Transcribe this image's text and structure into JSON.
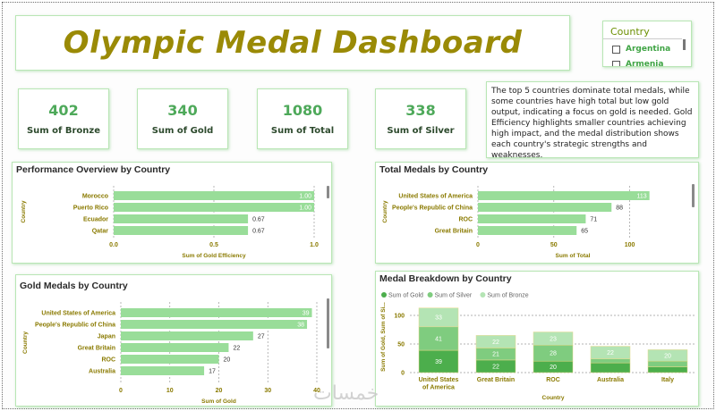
{
  "title": "Olympic Medal Dashboard",
  "slicer": {
    "label": "Country",
    "options": [
      "Argentina",
      "Armenia"
    ]
  },
  "kpis": [
    {
      "value": "402",
      "label": "Sum of Bronze"
    },
    {
      "value": "340",
      "label": "Sum of Gold"
    },
    {
      "value": "1080",
      "label": "Sum of Total"
    },
    {
      "value": "338",
      "label": "Sum of Silver"
    }
  ],
  "insight": "The top 5 countries dominate total medals, while some countries have high total but low gold output, indicating a focus on gold is needed. Gold Efficiency highlights smaller countries achieving high impact, and the medal distribution shows each country's strategic strengths and weaknesses.",
  "watermark": "خمسات",
  "colors": {
    "bar": "#99dd99",
    "gold_seg": "#4cae4c",
    "silver_seg": "#7fcc7f",
    "bronze_seg": "#b4e4b4",
    "title": "#9a8a06"
  },
  "chart_data": [
    {
      "id": "performance",
      "type": "bar",
      "orientation": "horizontal",
      "title": "Performance Overview by Country",
      "categories": [
        "Morocco",
        "Puerto Rico",
        "Ecuador",
        "Qatar"
      ],
      "values": [
        1.0,
        1.0,
        0.67,
        0.67
      ],
      "labels": [
        "1.00",
        "1.00",
        "0.67",
        "0.67"
      ],
      "ticks": [
        0.0,
        0.5,
        1.0
      ],
      "tick_labels": [
        "0.0",
        "0.5",
        "1.0"
      ],
      "xlim": [
        0,
        1
      ],
      "xlabel": "Sum of Gold Efficiency",
      "ylabel": "Country"
    },
    {
      "id": "total",
      "type": "bar",
      "orientation": "horizontal",
      "title": "Total Medals by Country",
      "categories": [
        "United States of America",
        "People's Republic of China",
        "ROC",
        "Great Britain"
      ],
      "values": [
        113,
        88,
        71,
        65
      ],
      "labels": [
        "113",
        "88",
        "71",
        "65"
      ],
      "ticks": [
        0,
        50,
        100
      ],
      "tick_labels": [
        "0",
        "50",
        "100"
      ],
      "xlim": [
        0,
        125
      ],
      "xlabel": "Sum of Total",
      "ylabel": "Country"
    },
    {
      "id": "gold",
      "type": "bar",
      "orientation": "horizontal",
      "title": "Gold Medals by Country",
      "categories": [
        "United States of America",
        "People's Republic of China",
        "Japan",
        "Great Britain",
        "ROC",
        "Australia"
      ],
      "values": [
        39,
        38,
        27,
        22,
        20,
        17
      ],
      "labels": [
        "39",
        "38",
        "27",
        "22",
        "20",
        "17"
      ],
      "ticks": [
        0,
        10,
        20,
        30,
        40
      ],
      "tick_labels": [
        "0",
        "10",
        "20",
        "30",
        "40"
      ],
      "xlim": [
        0,
        40
      ],
      "xlabel": "Sum of Gold",
      "ylabel": "Country"
    },
    {
      "id": "breakdown",
      "type": "bar",
      "orientation": "vertical",
      "stacked": true,
      "title": "Medal Breakdown by Country",
      "categories": [
        "United States of America",
        "Great Britain",
        "ROC",
        "Australia",
        "Italy"
      ],
      "category_lines": [
        [
          "United States",
          "of America"
        ],
        [
          "Great Britain"
        ],
        [
          "ROC"
        ],
        [
          "Australia"
        ],
        [
          "Italy"
        ]
      ],
      "series": [
        {
          "name": "Sum of Gold",
          "values": [
            39,
            22,
            20,
            17,
            10
          ]
        },
        {
          "name": "Sum of Silver",
          "values": [
            41,
            21,
            28,
            7,
            10
          ]
        },
        {
          "name": "Sum of Bronze",
          "values": [
            33,
            22,
            23,
            22,
            20
          ]
        }
      ],
      "segment_labels": [
        [
          "39",
          "22",
          "20",
          "",
          ""
        ],
        [
          "41",
          "21",
          "28",
          "",
          ""
        ],
        [
          "33",
          "22",
          "23",
          "22",
          "20"
        ]
      ],
      "ticks": [
        0,
        50,
        100
      ],
      "tick_labels": [
        "0",
        "50",
        "100"
      ],
      "ylim": [
        0,
        125
      ],
      "xlabel": "Country",
      "ylabel": "Sum of Gold, Sum of Si..."
    }
  ]
}
